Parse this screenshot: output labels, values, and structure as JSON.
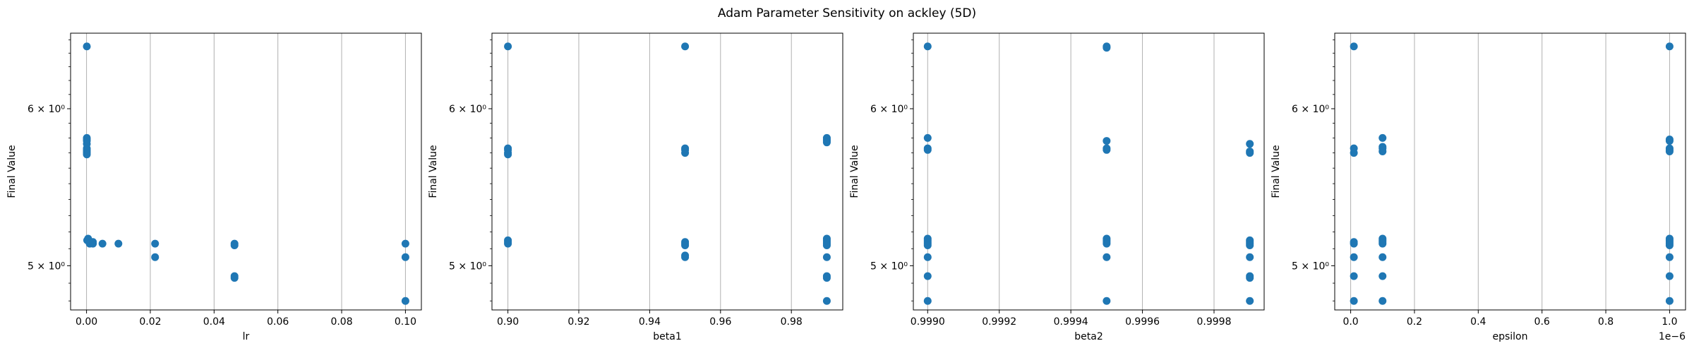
{
  "chart_data": {
    "type": "scatter",
    "title": "Adam Parameter Sensitivity on ackley (5D)",
    "marker_color": "#1f77b4",
    "grid": "x",
    "subplots": [
      {
        "id": "lr",
        "xlabel": "lr",
        "ylabel": "Final Value",
        "xlim": [
          -0.005,
          0.105
        ],
        "ylim": [
          4.75,
          6.55
        ],
        "yscale": "log",
        "xticks": [
          0.0,
          0.02,
          0.04,
          0.06,
          0.08,
          0.1
        ],
        "xtick_labels": [
          "0.00",
          "0.02",
          "0.04",
          "0.06",
          "0.08",
          "0.10"
        ],
        "yticks": [
          5,
          6
        ],
        "ytick_labels": [
          "5 × 10⁰",
          "6 × 10⁰"
        ],
        "offset_text": "",
        "points": [
          [
            0.0001,
            6.45
          ],
          [
            0.0001,
            5.8
          ],
          [
            0.0001,
            5.79
          ],
          [
            0.0001,
            5.78
          ],
          [
            0.0001,
            5.76
          ],
          [
            0.0001,
            5.73
          ],
          [
            0.0001,
            5.72
          ],
          [
            0.0001,
            5.71
          ],
          [
            0.0001,
            5.7
          ],
          [
            0.0001,
            5.69
          ],
          [
            0.0002,
            5.15
          ],
          [
            0.0005,
            5.16
          ],
          [
            0.001,
            5.13
          ],
          [
            0.002,
            5.13
          ],
          [
            0.002,
            5.14
          ],
          [
            0.005,
            5.13
          ],
          [
            0.01,
            5.13
          ],
          [
            0.0215,
            5.13
          ],
          [
            0.0215,
            5.05
          ],
          [
            0.0464,
            5.13
          ],
          [
            0.0464,
            5.12
          ],
          [
            0.0464,
            4.94
          ],
          [
            0.0464,
            4.93
          ],
          [
            0.1,
            5.13
          ],
          [
            0.1,
            5.05
          ],
          [
            0.1,
            4.8
          ]
        ]
      },
      {
        "id": "beta1",
        "xlabel": "beta1",
        "ylabel": "Final Value",
        "xlim": [
          0.8955,
          0.9945
        ],
        "ylim": [
          4.75,
          6.55
        ],
        "yscale": "log",
        "xticks": [
          0.9,
          0.92,
          0.94,
          0.96,
          0.98
        ],
        "xtick_labels": [
          "0.90",
          "0.92",
          "0.94",
          "0.96",
          "0.98"
        ],
        "yticks": [
          5,
          6
        ],
        "ytick_labels": [
          "5 × 10⁰",
          "6 × 10⁰"
        ],
        "offset_text": "",
        "points": [
          [
            0.9,
            6.45
          ],
          [
            0.9,
            5.73
          ],
          [
            0.9,
            5.72
          ],
          [
            0.9,
            5.7
          ],
          [
            0.9,
            5.69
          ],
          [
            0.9,
            5.15
          ],
          [
            0.9,
            5.14
          ],
          [
            0.9,
            5.13
          ],
          [
            0.95,
            6.45
          ],
          [
            0.95,
            5.73
          ],
          [
            0.95,
            5.72
          ],
          [
            0.95,
            5.7
          ],
          [
            0.95,
            5.14
          ],
          [
            0.95,
            5.13
          ],
          [
            0.95,
            5.12
          ],
          [
            0.95,
            5.06
          ],
          [
            0.95,
            5.05
          ],
          [
            0.99,
            5.8
          ],
          [
            0.99,
            5.79
          ],
          [
            0.99,
            5.78
          ],
          [
            0.99,
            5.77
          ],
          [
            0.99,
            5.16
          ],
          [
            0.99,
            5.15
          ],
          [
            0.99,
            5.14
          ],
          [
            0.99,
            5.13
          ],
          [
            0.99,
            5.12
          ],
          [
            0.99,
            5.05
          ],
          [
            0.99,
            4.94
          ],
          [
            0.99,
            4.93
          ],
          [
            0.99,
            4.8
          ]
        ]
      },
      {
        "id": "beta2",
        "xlabel": "beta2",
        "ylabel": "Final Value",
        "xlim": [
          0.99896,
          0.99994
        ],
        "ylim": [
          4.75,
          6.55
        ],
        "yscale": "log",
        "xticks": [
          0.999,
          0.9992,
          0.9994,
          0.9996,
          0.9998
        ],
        "xtick_labels": [
          "0.9990",
          "0.9992",
          "0.9994",
          "0.9996",
          "0.9998"
        ],
        "yticks": [
          5,
          6
        ],
        "ytick_labels": [
          "5 × 10⁰",
          "6 × 10⁰"
        ],
        "offset_text": "",
        "points": [
          [
            0.999,
            6.45
          ],
          [
            0.999,
            5.8
          ],
          [
            0.999,
            5.73
          ],
          [
            0.999,
            5.72
          ],
          [
            0.999,
            5.16
          ],
          [
            0.999,
            5.15
          ],
          [
            0.999,
            5.14
          ],
          [
            0.999,
            5.13
          ],
          [
            0.999,
            5.12
          ],
          [
            0.999,
            5.05
          ],
          [
            0.999,
            4.94
          ],
          [
            0.999,
            4.8
          ],
          [
            0.9995,
            6.45
          ],
          [
            0.9995,
            6.44
          ],
          [
            0.9995,
            5.78
          ],
          [
            0.9995,
            5.73
          ],
          [
            0.9995,
            5.72
          ],
          [
            0.9995,
            5.16
          ],
          [
            0.9995,
            5.15
          ],
          [
            0.9995,
            5.14
          ],
          [
            0.9995,
            5.13
          ],
          [
            0.9995,
            5.05
          ],
          [
            0.9995,
            4.8
          ],
          [
            0.9999,
            5.76
          ],
          [
            0.9999,
            5.71
          ],
          [
            0.9999,
            5.7
          ],
          [
            0.9999,
            5.15
          ],
          [
            0.9999,
            5.14
          ],
          [
            0.9999,
            5.13
          ],
          [
            0.9999,
            5.12
          ],
          [
            0.9999,
            5.05
          ],
          [
            0.9999,
            4.94
          ],
          [
            0.9999,
            4.93
          ],
          [
            0.9999,
            4.8
          ]
        ]
      },
      {
        "id": "epsilon",
        "xlabel": "epsilon",
        "ylabel": "Final Value",
        "xlim": [
          -5e-08,
          1.05e-06
        ],
        "ylim": [
          4.75,
          6.55
        ],
        "yscale": "log",
        "xticks": [
          0.0,
          2e-07,
          4e-07,
          6e-07,
          8e-07,
          1e-06
        ],
        "xtick_labels": [
          "0.0",
          "0.2",
          "0.4",
          "0.6",
          "0.8",
          "1.0"
        ],
        "yticks": [
          5,
          6
        ],
        "ytick_labels": [
          "5 × 10⁰",
          "6 × 10⁰"
        ],
        "offset_text": "1e−6",
        "points": [
          [
            1e-08,
            6.45
          ],
          [
            1e-08,
            5.73
          ],
          [
            1e-08,
            5.7
          ],
          [
            1e-08,
            5.14
          ],
          [
            1e-08,
            5.13
          ],
          [
            1e-08,
            5.05
          ],
          [
            1e-08,
            4.94
          ],
          [
            1e-08,
            4.8
          ],
          [
            1e-07,
            5.8
          ],
          [
            1e-07,
            5.74
          ],
          [
            1e-07,
            5.73
          ],
          [
            1e-07,
            5.71
          ],
          [
            1e-07,
            5.16
          ],
          [
            1e-07,
            5.15
          ],
          [
            1e-07,
            5.14
          ],
          [
            1e-07,
            5.13
          ],
          [
            1e-07,
            5.05
          ],
          [
            1e-07,
            4.94
          ],
          [
            1e-07,
            4.8
          ],
          [
            1e-06,
            6.45
          ],
          [
            1e-06,
            5.79
          ],
          [
            1e-06,
            5.78
          ],
          [
            1e-06,
            5.73
          ],
          [
            1e-06,
            5.72
          ],
          [
            1e-06,
            5.71
          ],
          [
            1e-06,
            5.16
          ],
          [
            1e-06,
            5.15
          ],
          [
            1e-06,
            5.14
          ],
          [
            1e-06,
            5.13
          ],
          [
            1e-06,
            5.12
          ],
          [
            1e-06,
            5.05
          ],
          [
            1e-06,
            4.94
          ],
          [
            1e-06,
            4.8
          ]
        ]
      }
    ]
  }
}
